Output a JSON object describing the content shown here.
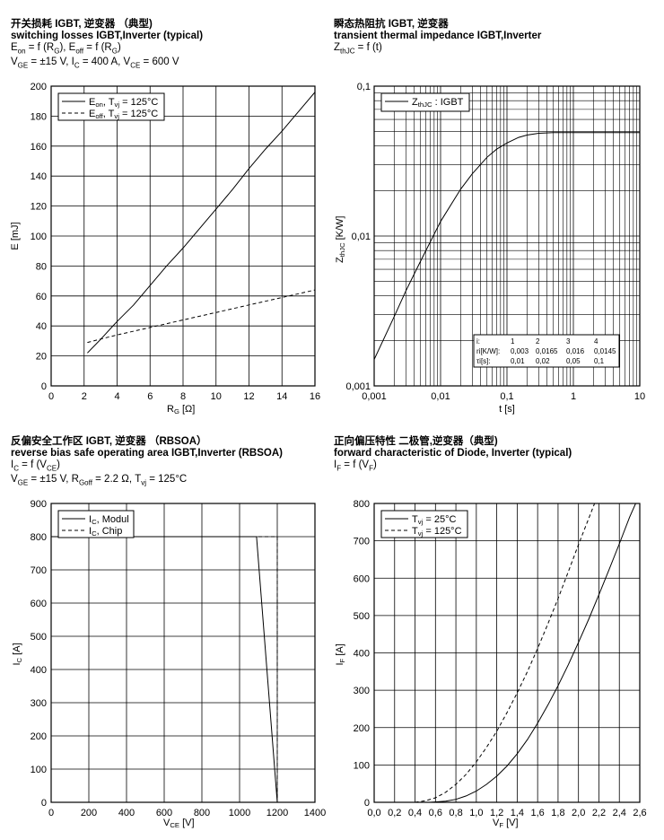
{
  "panels": {
    "tl": {
      "title_cn": "开关损耗 IGBT, 逆变器 （典型)",
      "title_en": "switching losses  IGBT,Inverter (typical)",
      "formula": "Eon = f (RG), Eoff = f (RG)",
      "conditions": "VGE = ±15 V, IC = 400 A, VCE = 600 V"
    },
    "tr": {
      "title_cn": "瞬态热阻抗  IGBT, 逆变器",
      "title_en": "transient thermal impedance  IGBT,Inverter",
      "formula": "ZthJC = f (t)"
    },
    "bl": {
      "title_cn": "反偏安全工作区  IGBT, 逆变器 （RBSOA）",
      "title_en": "reverse bias safe operating area  IGBT,Inverter (RBSOA)",
      "formula": "IC = f (VCE)",
      "conditions": "VGE = ±15 V, RGoff = 2.2 Ω, Tvj = 125°C"
    },
    "br": {
      "title_cn": "正向偏压特性  二极管,逆变器（典型)",
      "title_en": "forward characteristic of  Diode, Inverter (typical)",
      "formula": "IF = f (VF)"
    }
  },
  "chart_data": [
    {
      "id": "switching_losses",
      "type": "line",
      "xlabel": "RG [Ω]",
      "ylabel": "E [mJ]",
      "xlim": [
        0,
        16
      ],
      "ylim": [
        0,
        200
      ],
      "x_ticks": [
        0,
        2,
        4,
        6,
        8,
        10,
        12,
        14,
        16
      ],
      "y_ticks": [
        0,
        20,
        40,
        60,
        80,
        100,
        120,
        140,
        160,
        180,
        200
      ],
      "grid": true,
      "legend_position": "top-left",
      "series": [
        {
          "name": "Eon, Tvj = 125°C",
          "style": "solid",
          "x": [
            2.2,
            3,
            4,
            5,
            6,
            7,
            8,
            9,
            10,
            11,
            12,
            13,
            14,
            15,
            16
          ],
          "y": [
            22,
            31,
            43,
            54,
            67,
            80,
            92,
            105,
            118,
            131,
            145,
            158,
            170,
            183,
            196
          ]
        },
        {
          "name": "Eoff, Tvj = 125°C",
          "style": "dashed",
          "x": [
            2.2,
            4,
            6,
            8,
            10,
            12,
            14,
            16
          ],
          "y": [
            29,
            34,
            39,
            44,
            49,
            54,
            59,
            64
          ]
        }
      ]
    },
    {
      "id": "transient_thermal_impedance",
      "type": "line",
      "scale": "log-log",
      "xlabel": "t [s]",
      "ylabel": "ZthJC [K/W]",
      "xlim": [
        0.001,
        10
      ],
      "ylim": [
        0.001,
        0.1
      ],
      "x_ticks": [
        "0,001",
        "0,01",
        "0,1",
        "1",
        "10"
      ],
      "y_ticks": [
        "0,001",
        "0,01",
        "0,1"
      ],
      "grid": true,
      "legend_position": "top-left",
      "series": [
        {
          "name": "ZthJC : IGBT",
          "style": "solid",
          "x": [
            0.001,
            0.002,
            0.003,
            0.005,
            0.01,
            0.02,
            0.03,
            0.05,
            0.07,
            0.1,
            0.15,
            0.2,
            0.3,
            0.5,
            1,
            10
          ],
          "y": [
            0.0015,
            0.0029,
            0.0043,
            0.0068,
            0.0125,
            0.0205,
            0.026,
            0.0335,
            0.038,
            0.0418,
            0.0455,
            0.0472,
            0.0485,
            0.049,
            0.049,
            0.049
          ]
        }
      ],
      "table": {
        "headers": [
          "i:",
          "1",
          "2",
          "3",
          "4"
        ],
        "rows": [
          [
            "ri[K/W]:",
            "0,003",
            "0,0165",
            "0,016",
            "0,0145"
          ],
          [
            "τi[s]:",
            "0,01",
            "0,02",
            "0,05",
            "0,1"
          ]
        ]
      }
    },
    {
      "id": "rbsoa",
      "type": "line",
      "xlabel": "VCE [V]",
      "ylabel": "IC [A]",
      "xlim": [
        0,
        1400
      ],
      "ylim": [
        0,
        900
      ],
      "x_ticks": [
        0,
        200,
        400,
        600,
        800,
        1000,
        1200,
        1400
      ],
      "y_ticks": [
        0,
        100,
        200,
        300,
        400,
        500,
        600,
        700,
        800,
        900
      ],
      "grid": true,
      "legend_position": "top-left",
      "series": [
        {
          "name": "IC, Modul",
          "style": "solid",
          "x": [
            0,
            1090,
            1200
          ],
          "y": [
            800,
            800,
            0
          ]
        },
        {
          "name": "IC, Chip",
          "style": "dashed",
          "x": [
            0,
            1200,
            1200
          ],
          "y": [
            800,
            800,
            0
          ]
        }
      ]
    },
    {
      "id": "forward_characteristic",
      "type": "line",
      "xlabel": "VF [V]",
      "ylabel": "IF [A]",
      "xlim": [
        0,
        2.6
      ],
      "ylim": [
        0,
        800
      ],
      "x_ticks": [
        "0,0",
        "0,2",
        "0,4",
        "0,6",
        "0,8",
        "1,0",
        "1,2",
        "1,4",
        "1,6",
        "1,8",
        "2,0",
        "2,2",
        "2,4",
        "2,6"
      ],
      "y_ticks": [
        0,
        100,
        200,
        300,
        400,
        500,
        600,
        700,
        800
      ],
      "grid": true,
      "legend_position": "top-left",
      "series": [
        {
          "name": "Tvj = 25°C",
          "style": "solid",
          "x": [
            0.55,
            0.7,
            0.8,
            0.9,
            1.0,
            1.1,
            1.2,
            1.3,
            1.4,
            1.5,
            1.6,
            1.7,
            1.8,
            1.9,
            2.0,
            2.1,
            2.2,
            2.3,
            2.4,
            2.5,
            2.56
          ],
          "y": [
            0,
            3,
            8,
            17,
            30,
            48,
            70,
            97,
            130,
            168,
            212,
            260,
            312,
            368,
            428,
            490,
            556,
            623,
            692,
            763,
            800
          ]
        },
        {
          "name": "Tvj = 125°C",
          "style": "dashed",
          "x": [
            0.4,
            0.5,
            0.6,
            0.7,
            0.8,
            0.9,
            1.0,
            1.1,
            1.2,
            1.3,
            1.4,
            1.5,
            1.6,
            1.7,
            1.8,
            1.9,
            2.0,
            2.1,
            2.2,
            2.27
          ],
          "y": [
            0,
            4,
            12,
            27,
            48,
            75,
            108,
            147,
            190,
            240,
            293,
            350,
            412,
            477,
            545,
            617,
            690,
            760,
            830,
            860
          ]
        }
      ]
    }
  ]
}
